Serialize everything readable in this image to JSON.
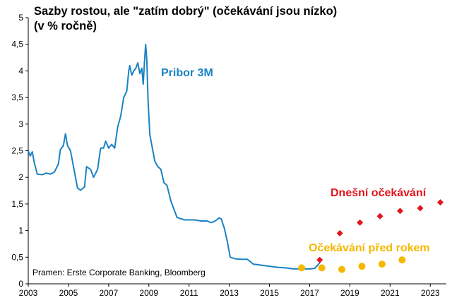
{
  "title_line1": "Sazby rostou, ale \"zatím dobrý\" (očekávání jsou nízko)",
  "title_line2": "(v % ročně)",
  "colors": {
    "pribor": "#1a82c4",
    "current_expectations": "#e3141b",
    "last_year_expectations": "#f5b800",
    "axis": "#000000"
  },
  "chart_data": {
    "type": "line",
    "title": "Sazby rostou, ale \"zatím dobrý\" (očekávání jsou nízko)",
    "subtitle": "(v % ročně)",
    "xlabel": "",
    "ylabel": "",
    "xlim": [
      2003,
      2023.8
    ],
    "ylim": [
      0,
      5
    ],
    "x_ticks": [
      2003,
      2005,
      2007,
      2009,
      2011,
      2013,
      2015,
      2017,
      2019,
      2021,
      2023
    ],
    "y_ticks": [
      0,
      0.5,
      1,
      1.5,
      2,
      2.5,
      3,
      3.5,
      4,
      4.5,
      5
    ],
    "y_tick_labels": [
      "0",
      "0,5",
      "1",
      "1,5",
      "2",
      "2,5",
      "3",
      "3,5",
      "4",
      "4,5",
      "5"
    ],
    "grid": false,
    "series": [
      {
        "name": "Pribor 3M",
        "style": "line",
        "color": "#1a82c4",
        "points": [
          [
            2003.0,
            2.5
          ],
          [
            2003.1,
            2.4
          ],
          [
            2003.2,
            2.48
          ],
          [
            2003.3,
            2.28
          ],
          [
            2003.45,
            2.06
          ],
          [
            2003.7,
            2.05
          ],
          [
            2003.9,
            2.08
          ],
          [
            2004.1,
            2.06
          ],
          [
            2004.3,
            2.1
          ],
          [
            2004.5,
            2.25
          ],
          [
            2004.6,
            2.52
          ],
          [
            2004.75,
            2.6
          ],
          [
            2004.85,
            2.82
          ],
          [
            2004.95,
            2.6
          ],
          [
            2005.1,
            2.5
          ],
          [
            2005.3,
            2.1
          ],
          [
            2005.45,
            1.8
          ],
          [
            2005.6,
            1.76
          ],
          [
            2005.8,
            1.82
          ],
          [
            2005.9,
            2.2
          ],
          [
            2006.1,
            2.15
          ],
          [
            2006.25,
            2.0
          ],
          [
            2006.45,
            2.15
          ],
          [
            2006.6,
            2.55
          ],
          [
            2006.75,
            2.55
          ],
          [
            2006.85,
            2.68
          ],
          [
            2007.0,
            2.55
          ],
          [
            2007.15,
            2.62
          ],
          [
            2007.3,
            2.55
          ],
          [
            2007.45,
            2.95
          ],
          [
            2007.6,
            3.15
          ],
          [
            2007.75,
            3.5
          ],
          [
            2007.9,
            3.62
          ],
          [
            2008.0,
            4.0
          ],
          [
            2008.05,
            4.1
          ],
          [
            2008.15,
            3.92
          ],
          [
            2008.25,
            4.0
          ],
          [
            2008.35,
            4.05
          ],
          [
            2008.45,
            4.15
          ],
          [
            2008.55,
            3.95
          ],
          [
            2008.65,
            4.05
          ],
          [
            2008.72,
            3.75
          ],
          [
            2008.78,
            4.15
          ],
          [
            2008.84,
            4.5
          ],
          [
            2008.9,
            4.2
          ],
          [
            2008.96,
            3.45
          ],
          [
            2009.05,
            2.8
          ],
          [
            2009.15,
            2.6
          ],
          [
            2009.3,
            2.3
          ],
          [
            2009.45,
            2.2
          ],
          [
            2009.6,
            2.15
          ],
          [
            2009.75,
            1.9
          ],
          [
            2009.9,
            1.85
          ],
          [
            2010.1,
            1.55
          ],
          [
            2010.25,
            1.4
          ],
          [
            2010.4,
            1.25
          ],
          [
            2010.6,
            1.22
          ],
          [
            2010.8,
            1.2
          ],
          [
            2011.0,
            1.2
          ],
          [
            2011.3,
            1.2
          ],
          [
            2011.6,
            1.18
          ],
          [
            2011.9,
            1.18
          ],
          [
            2012.1,
            1.15
          ],
          [
            2012.3,
            1.18
          ],
          [
            2012.5,
            1.24
          ],
          [
            2012.6,
            1.22
          ],
          [
            2012.75,
            1.05
          ],
          [
            2012.9,
            0.8
          ],
          [
            2013.05,
            0.5
          ],
          [
            2013.3,
            0.47
          ],
          [
            2013.6,
            0.46
          ],
          [
            2013.9,
            0.46
          ],
          [
            2014.2,
            0.37
          ],
          [
            2014.6,
            0.35
          ],
          [
            2015.0,
            0.33
          ],
          [
            2015.4,
            0.31
          ],
          [
            2015.8,
            0.3
          ],
          [
            2016.2,
            0.28
          ],
          [
            2016.6,
            0.28
          ],
          [
            2017.0,
            0.28
          ],
          [
            2017.25,
            0.29
          ],
          [
            2017.4,
            0.35
          ],
          [
            2017.55,
            0.42
          ]
        ]
      },
      {
        "name": "Dnešní očekávání",
        "style": "diamond",
        "color": "#e3141b",
        "points": [
          [
            2017.5,
            0.45
          ],
          [
            2018.5,
            0.95
          ],
          [
            2019.5,
            1.15
          ],
          [
            2020.5,
            1.27
          ],
          [
            2021.5,
            1.37
          ],
          [
            2022.5,
            1.42
          ],
          [
            2023.5,
            1.53
          ]
        ]
      },
      {
        "name": "Očekávání před rokem",
        "style": "circle",
        "color": "#f5b800",
        "points": [
          [
            2016.6,
            0.3
          ],
          [
            2017.6,
            0.3
          ],
          [
            2018.6,
            0.27
          ],
          [
            2019.6,
            0.33
          ],
          [
            2020.6,
            0.37
          ],
          [
            2021.6,
            0.45
          ]
        ]
      }
    ],
    "annotations": [
      {
        "text": "Pribor 3M",
        "color": "#1a82c4",
        "series": "Pribor 3M"
      },
      {
        "text": "Dnešní očekávání",
        "color": "#e3141b",
        "series": "Dnešní očekávání"
      },
      {
        "text": "Očekávání před rokem",
        "color": "#f5b800",
        "series": "Očekávání před rokem"
      },
      {
        "text": "Pramen: Erste Corporate Banking, Bloomberg",
        "color": "#000000",
        "series": ""
      }
    ]
  }
}
